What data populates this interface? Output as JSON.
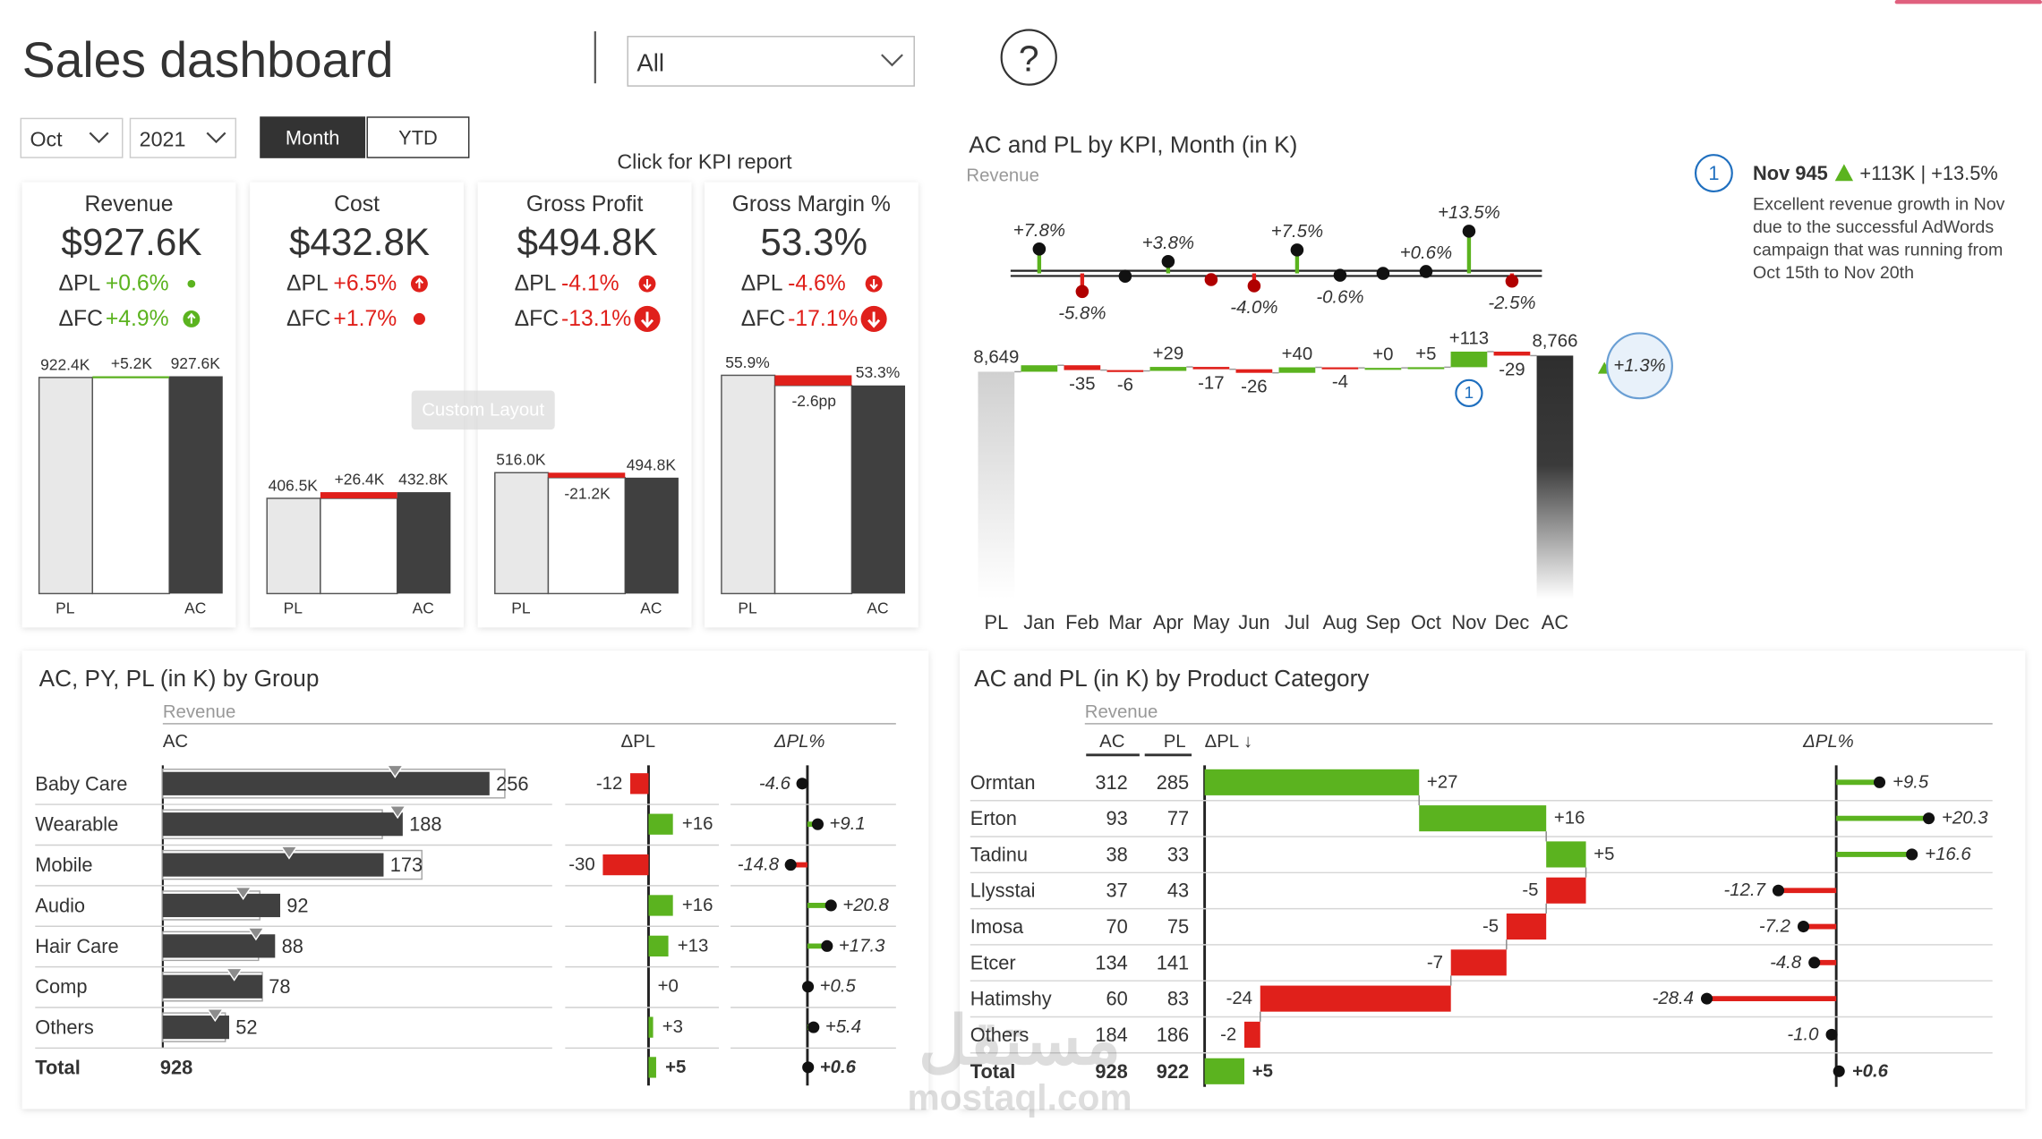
{
  "header": {
    "title": "Sales dashboard",
    "filter": "All",
    "help": "?",
    "month": "Oct",
    "year": "2021",
    "buttons": [
      "Month",
      "YTD"
    ],
    "kpi_link": "Click for KPI report"
  },
  "overlay": "Custom Layout",
  "note": {
    "marker": "1",
    "heading": "Nov 945",
    "delta": "+113K | +13.5%",
    "lines": [
      "Excellent revenue growth in Nov",
      "due to the successful AdWords",
      "campaign that was running from",
      "Oct 15th to Nov 20th"
    ]
  },
  "watermark": [
    "مستقل",
    "mostaql.com"
  ],
  "chart_data": [
    {
      "type": "kpi-waterfall",
      "title": "Revenue",
      "kpi": "$927.6K",
      "deltas": [
        {
          "label": "ΔPL",
          "text": "+0.6%",
          "color": "#5bb31f"
        },
        {
          "label": "ΔFC",
          "text": "+4.9%",
          "color": "#5bb31f"
        }
      ],
      "categories": [
        "PL",
        null,
        "AC"
      ],
      "values": [
        922.4,
        5.2,
        927.6
      ],
      "value_labels": [
        "922.4K",
        "+5.2K",
        "927.6K"
      ],
      "colors": [
        "#e8e8e8",
        "#5bb31f",
        "#404040"
      ],
      "ylim": [
        0,
        1000
      ]
    },
    {
      "type": "kpi-waterfall",
      "title": "Cost",
      "kpi": "$432.8K",
      "deltas": [
        {
          "label": "ΔPL",
          "text": "+6.5%",
          "color": "#e0201b"
        },
        {
          "label": "ΔFC",
          "text": "+1.7%",
          "color": "#e0201b"
        }
      ],
      "categories": [
        "PL",
        null,
        "AC"
      ],
      "values": [
        406.5,
        26.4,
        432.8
      ],
      "value_labels": [
        "406.5K",
        "+26.4K",
        "432.8K"
      ],
      "colors": [
        "#e8e8e8",
        "#e0201b",
        "#404040"
      ],
      "ylim": [
        0,
        1000
      ]
    },
    {
      "type": "kpi-waterfall",
      "title": "Gross Profit",
      "kpi": "$494.8K",
      "deltas": [
        {
          "label": "ΔPL",
          "text": "-4.1%",
          "color": "#e0201b"
        },
        {
          "label": "ΔFC",
          "text": "-13.1%",
          "color": "#e0201b"
        }
      ],
      "categories": [
        "PL",
        null,
        "AC"
      ],
      "values": [
        516.0,
        -21.2,
        494.8
      ],
      "value_labels": [
        "516.0K",
        "-21.2K",
        "494.8K"
      ],
      "colors": [
        "#e8e8e8",
        "#e0201b",
        "#404040"
      ],
      "ylim": [
        0,
        1000
      ]
    },
    {
      "type": "kpi-waterfall",
      "title": "Gross Margin %",
      "kpi": "53.3%",
      "deltas": [
        {
          "label": "ΔPL",
          "text": "-4.6%",
          "color": "#e0201b"
        },
        {
          "label": "ΔFC",
          "text": "-17.1%",
          "color": "#e0201b"
        }
      ],
      "categories": [
        "PL",
        null,
        "AC"
      ],
      "values": [
        55.9,
        -2.6,
        53.3
      ],
      "value_labels": [
        "55.9%",
        "-2.6pp",
        "53.3%"
      ],
      "colors": [
        "#e8e8e8",
        "#e0201b",
        "#404040"
      ],
      "ylim": [
        0,
        60
      ]
    },
    {
      "type": "waterfall",
      "title": "AC and PL by KPI, Month (in K)",
      "subtitle": "Revenue",
      "categories": [
        "PL",
        "Jan",
        "Feb",
        "Mar",
        "Apr",
        "May",
        "Jun",
        "Jul",
        "Aug",
        "Sep",
        "Oct",
        "Nov",
        "Dec",
        "AC"
      ],
      "values": [
        8649,
        47,
        -35,
        -6,
        29,
        -17,
        -26,
        40,
        -4,
        0,
        5,
        113,
        -29,
        8766
      ],
      "value_labels": [
        "8,649",
        null,
        "-35",
        "-6",
        "+29",
        "-17",
        "-26",
        "+40",
        "-4",
        "+0",
        "+5",
        "+113",
        "-29",
        "8,766"
      ],
      "ylim": [
        7000,
        8900
      ],
      "variance": {
        "values": [
          null,
          7.8,
          -5.8,
          -0.9,
          3.8,
          -2.0,
          -4.0,
          7.5,
          -0.6,
          0,
          0.6,
          13.5,
          -2.5,
          null
        ],
        "value_labels": [
          null,
          "+7.8%",
          "-5.8%",
          null,
          "+3.8%",
          null,
          "-4.0%",
          "+7.5%",
          "-0.6%",
          null,
          "+0.6%",
          "+13.5%",
          "-2.5%",
          null
        ],
        "ylim": [
          -10,
          15
        ]
      },
      "marker": "1",
      "total_delta": "+1.3%",
      "colors": {
        "positive": "#5bb31f",
        "negative": "#e0201b"
      }
    },
    {
      "type": "bar-table",
      "title": "AC, PY, PL (in K) by Group",
      "subtitle": "Revenue",
      "categories": [
        "Baby Care",
        "Wearable",
        "Mobile",
        "Audio",
        "Hair Care",
        "Comp",
        "Others"
      ],
      "total_label": "Total",
      "series": [
        {
          "name": "AC",
          "values": [
            256,
            188,
            173,
            92,
            88,
            78,
            52
          ],
          "total": 928,
          "color": "#404040"
        },
        {
          "values": [
            268,
            172,
            203,
            76,
            75,
            78,
            49
          ],
          "color": "#a6a6a6"
        },
        {
          "values": [
            182,
            184,
            99,
            63,
            73,
            56,
            41
          ],
          "color": "#8c8c8c"
        }
      ],
      "delta": {
        "name": "ΔPL",
        "values": [
          -12,
          16,
          -30,
          16,
          13,
          0,
          3
        ],
        "value_labels": [
          "-12",
          "+16",
          "-30",
          "+16",
          "+13",
          "+0",
          "+3"
        ],
        "total": 5,
        "total_label": "+5"
      },
      "delta_pct": {
        "name": "ΔPL%",
        "values": [
          -4.6,
          9.1,
          -14.8,
          20.8,
          17.3,
          0.5,
          5.4
        ],
        "value_labels": [
          "-4.6",
          "+9.1",
          "-14.8",
          "+20.8",
          "+17.3",
          "+0.5",
          "+5.4"
        ],
        "total": 0.6,
        "total_label": "+0.6"
      },
      "colors": {
        "positive": "#5bb31f",
        "negative": "#e0201b"
      }
    },
    {
      "type": "variance-table",
      "title": "AC and PL (in K) by Product Category",
      "subtitle": "Revenue",
      "categories": [
        "Ormtan",
        "Erton",
        "Tadinu",
        "Llysstai",
        "Imosa",
        "Etcer",
        "Hatimshy",
        "Others"
      ],
      "total_label": "Total",
      "series": [
        {
          "name": "AC",
          "values": [
            312,
            93,
            38,
            37,
            70,
            134,
            60,
            184
          ],
          "total": 928
        },
        {
          "name": "PL",
          "values": [
            285,
            77,
            33,
            43,
            75,
            141,
            83,
            186
          ],
          "total": 922
        }
      ],
      "delta": {
        "name": "ΔPL ↓",
        "values": [
          27,
          16,
          5,
          -5,
          -5,
          -7,
          -24,
          -2
        ],
        "value_labels": [
          "+27",
          "+16",
          "+5",
          "-5",
          "-5",
          "-7",
          "-24",
          "-2"
        ],
        "total": 5,
        "total_label": "+5"
      },
      "delta_pct": {
        "name": "ΔPL%",
        "values": [
          9.5,
          20.3,
          16.6,
          -12.7,
          -7.2,
          -4.8,
          -28.4,
          -1.0
        ],
        "value_labels": [
          "+9.5",
          "+20.3",
          "+16.6",
          "-12.7",
          "-7.2",
          "-4.8",
          "-28.4",
          "-1.0"
        ],
        "total": 0.6,
        "total_label": "+0.6"
      },
      "colors": {
        "positive": "#5bb31f",
        "negative": "#e0201b"
      }
    }
  ]
}
